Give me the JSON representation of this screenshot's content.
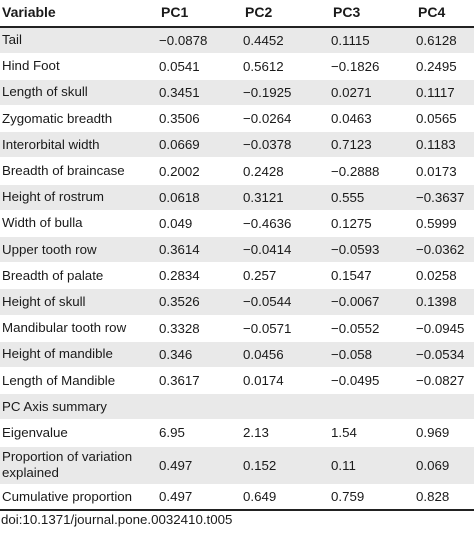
{
  "table": {
    "headers": [
      "Variable",
      "PC1",
      "PC2",
      "PC3",
      "PC4"
    ],
    "rows": [
      {
        "label": "Tail",
        "values": [
          "−0.0878",
          "0.4452",
          "0.1115",
          "0.6128"
        ]
      },
      {
        "label": "Hind Foot",
        "values": [
          "0.0541",
          "0.5612",
          "−0.1826",
          "0.2495"
        ]
      },
      {
        "label": "Length of skull",
        "values": [
          "0.3451",
          "−0.1925",
          "0.0271",
          "0.1117"
        ]
      },
      {
        "label": "Zygomatic breadth",
        "values": [
          "0.3506",
          "−0.0264",
          "0.0463",
          "0.0565"
        ]
      },
      {
        "label": "Interorbital width",
        "values": [
          "0.0669",
          "−0.0378",
          "0.7123",
          "0.1183"
        ]
      },
      {
        "label": "Breadth of braincase",
        "values": [
          "0.2002",
          "0.2428",
          "−0.2888",
          "0.0173"
        ]
      },
      {
        "label": "Height of rostrum",
        "values": [
          "0.0618",
          "0.3121",
          "0.555",
          "−0.3637"
        ]
      },
      {
        "label": "Width of bulla",
        "values": [
          "0.049",
          "−0.4636",
          "0.1275",
          "0.5999"
        ]
      },
      {
        "label": "Upper tooth row",
        "values": [
          "0.3614",
          "−0.0414",
          "−0.0593",
          "−0.0362"
        ]
      },
      {
        "label": "Breadth of palate",
        "values": [
          "0.2834",
          "0.257",
          "0.1547",
          "0.0258"
        ]
      },
      {
        "label": "Height of skull",
        "values": [
          "0.3526",
          "−0.0544",
          "−0.0067",
          "0.1398"
        ]
      },
      {
        "label": "Mandibular tooth row",
        "values": [
          "0.3328",
          "−0.0571",
          "−0.0552",
          "−0.0945"
        ]
      },
      {
        "label": "Height of mandible",
        "values": [
          "0.346",
          "0.0456",
          "−0.058",
          "−0.0534"
        ]
      },
      {
        "label": "Length of Mandible",
        "values": [
          "0.3617",
          "0.0174",
          "−0.0495",
          "−0.0827"
        ]
      },
      {
        "label": "PC Axis summary",
        "values": [
          "",
          "",
          "",
          ""
        ]
      },
      {
        "label": "Eigenvalue",
        "values": [
          "6.95",
          "2.13",
          "1.54",
          "0.969"
        ]
      },
      {
        "label": "Proportion of variation explained",
        "values": [
          "0.497",
          "0.152",
          "0.11",
          "0.069"
        ],
        "tall": true
      },
      {
        "label": "Cumulative proportion",
        "values": [
          "0.497",
          "0.649",
          "0.759",
          "0.828"
        ]
      }
    ]
  },
  "doi": "doi:10.1371/journal.pone.0032410.t005"
}
